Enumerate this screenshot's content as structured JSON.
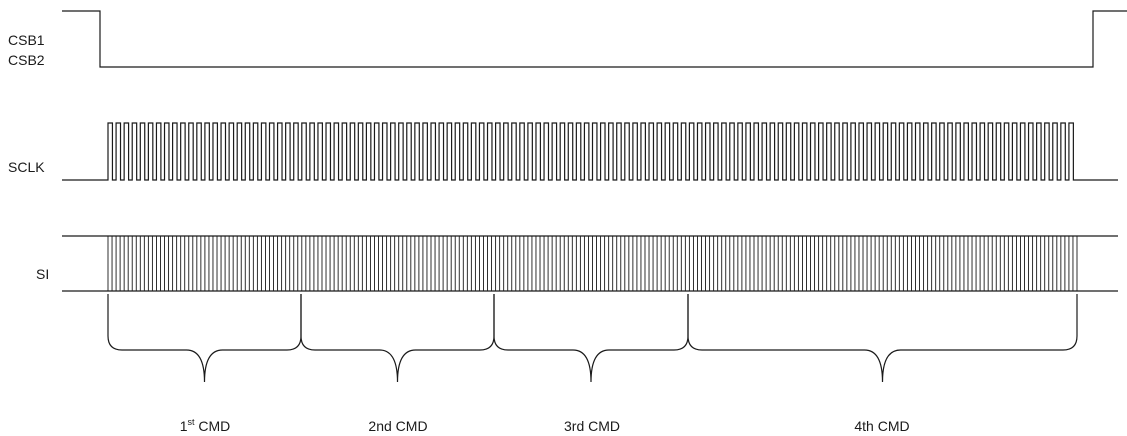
{
  "signals": {
    "cs_line1": "CSB1",
    "cs_line2": "CSB2",
    "clock": "SCLK",
    "data": "SI"
  },
  "commands": [
    {
      "base": "1",
      "sup": "st",
      "rest": " CMD"
    },
    {
      "base": "2nd CMD",
      "sup": "",
      "rest": ""
    },
    {
      "base": "3rd CMD",
      "sup": "",
      "rest": ""
    },
    {
      "base": "4th CMD",
      "sup": "",
      "rest": ""
    }
  ]
}
